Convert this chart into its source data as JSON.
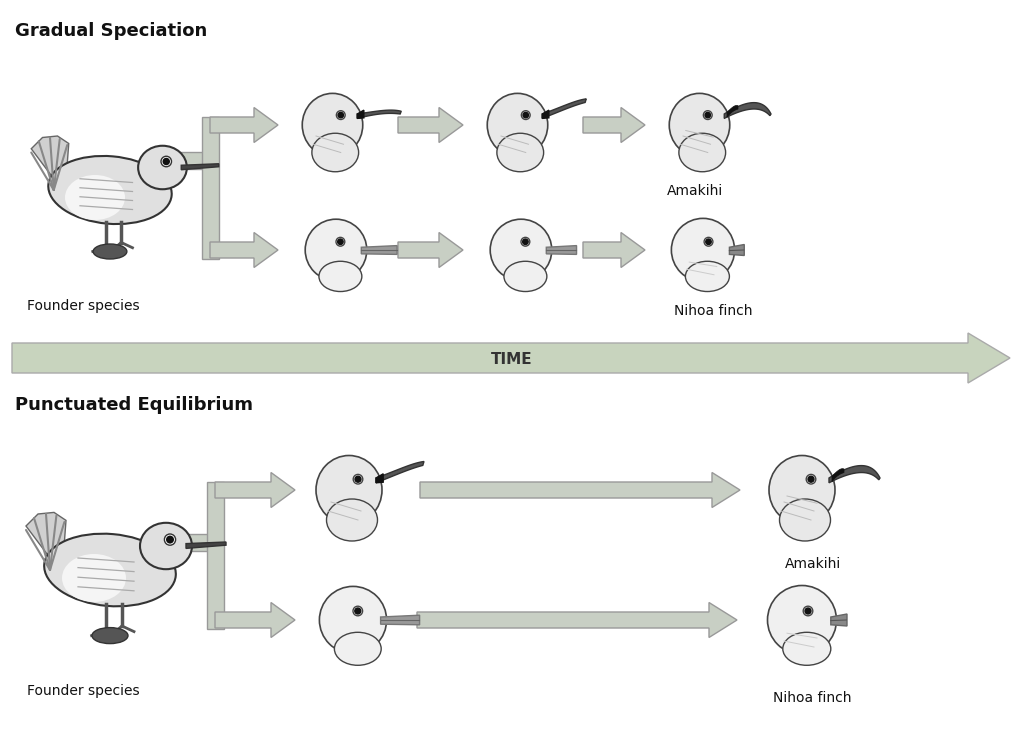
{
  "title_top": "Gradual Speciation",
  "title_bottom": "Punctuated Equilibrium",
  "time_label": "TIME",
  "label_founder": "Founder species",
  "label_amakihi": "Amakihi",
  "label_nihoa": "Nihoa finch",
  "bg_color": "#ffffff",
  "arrow_color": "#c8cfc4",
  "arrow_edge_color": "#999999",
  "time_arrow_fill": "#c8d4be",
  "time_arrow_edge": "#aaaaaa",
  "title_fontsize": 13,
  "label_fontsize": 10,
  "time_fontsize": 11,
  "bird_body_color": "#e8e8e8",
  "bird_edge_color": "#444444",
  "beak_color": "#333333",
  "eye_color": "#111111"
}
